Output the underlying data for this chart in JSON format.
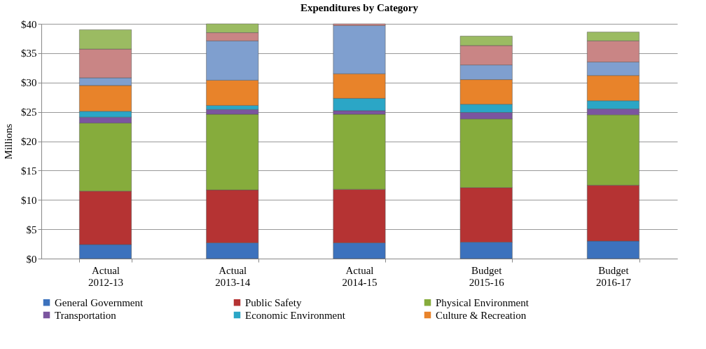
{
  "chart_data": {
    "type": "bar",
    "stacked": true,
    "title": "Expenditures by Category",
    "ylabel": "Millions",
    "categories": [
      "Actual\n2012-13",
      "Actual\n2013-14",
      "Actual\n2014-15",
      "Budget\n2015-16",
      "Budget\n2016-17"
    ],
    "series": [
      {
        "name": "General Government",
        "color": "#3c72bd",
        "values": [
          2.4,
          2.7,
          2.7,
          2.8,
          3.0
        ]
      },
      {
        "name": "Public Safety",
        "color": "#b53333",
        "values": [
          9.1,
          9.0,
          9.1,
          9.3,
          9.5
        ]
      },
      {
        "name": "Physical Environment",
        "color": "#86ac3c",
        "values": [
          11.6,
          12.9,
          12.8,
          11.7,
          12.0
        ]
      },
      {
        "name": "Transportation",
        "color": "#7b559f",
        "values": [
          1.0,
          0.8,
          0.6,
          1.1,
          1.0
        ]
      },
      {
        "name": "Economic Environment",
        "color": "#2ba6c6",
        "values": [
          1.0,
          0.7,
          2.1,
          1.4,
          1.4
        ]
      },
      {
        "name": "Culture & Recreation",
        "color": "#e8832a",
        "values": [
          4.4,
          4.3,
          4.2,
          4.2,
          4.3
        ]
      },
      {
        "color": "#7f9fcf",
        "values": [
          1.3,
          6.7,
          8.2,
          2.5,
          2.3
        ]
      },
      {
        "color": "#c98585",
        "values": [
          4.9,
          1.4,
          0.3,
          3.3,
          3.6
        ]
      },
      {
        "color": "#9bbb62",
        "values": [
          3.3,
          1.5,
          null,
          1.6,
          1.5
        ]
      }
    ],
    "ylim": [
      0,
      40
    ],
    "yticks": [
      {
        "value": 0,
        "label": "$0"
      },
      {
        "value": 5,
        "label": "$5"
      },
      {
        "value": 10,
        "label": "$10"
      },
      {
        "value": 15,
        "label": "$15"
      },
      {
        "value": 20,
        "label": "$20"
      },
      {
        "value": 25,
        "label": "$25"
      },
      {
        "value": 30,
        "label": "$30"
      },
      {
        "value": 35,
        "label": "$35"
      },
      {
        "value": 40,
        "label": "$40"
      }
    ],
    "grid": "y",
    "legend": "bottom"
  }
}
